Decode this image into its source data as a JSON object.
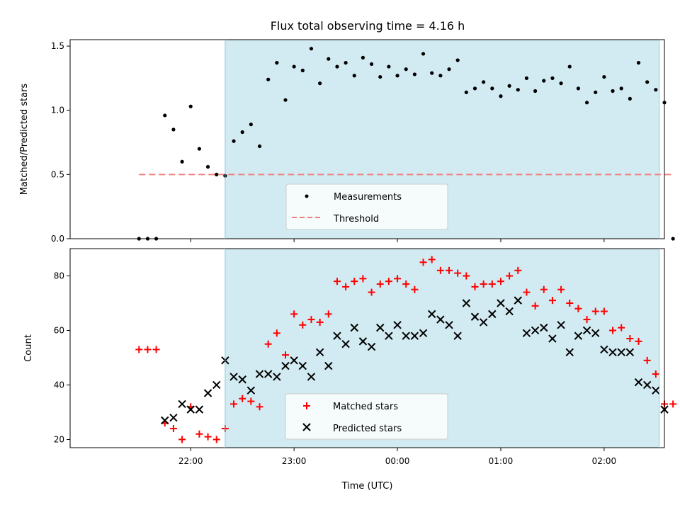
{
  "chart_data": [
    {
      "type": "scatter",
      "title": "Flux total observing time = 4.16 h",
      "xlabel": "",
      "ylabel": "Matched/Predicted stars",
      "ylim": [
        0,
        1.55
      ],
      "yticks": [
        "0.0",
        "0.5",
        "1.0",
        "1.5"
      ],
      "grid": false,
      "legend_placement": "bottom-center",
      "shaded_span": {
        "from": "22:20",
        "to": "02:32",
        "color": "#add8e6"
      },
      "series": [
        {
          "name": "Measurements",
          "marker": "dot",
          "color": "#000000",
          "x": [
            "21:30",
            "21:35",
            "21:40",
            "21:45",
            "21:50",
            "21:55",
            "22:00",
            "22:05",
            "22:10",
            "22:15",
            "22:20",
            "22:25",
            "22:30",
            "22:35",
            "22:40",
            "22:45",
            "22:50",
            "22:55",
            "23:00",
            "23:05",
            "23:10",
            "23:15",
            "23:20",
            "23:25",
            "23:30",
            "23:35",
            "23:40",
            "23:45",
            "23:50",
            "23:55",
            "00:00",
            "00:05",
            "00:10",
            "00:15",
            "00:20",
            "00:25",
            "00:30",
            "00:35",
            "00:40",
            "00:45",
            "00:50",
            "00:55",
            "01:00",
            "01:05",
            "01:10",
            "01:15",
            "01:20",
            "01:25",
            "01:30",
            "01:35",
            "01:40",
            "01:45",
            "01:50",
            "01:55",
            "02:00",
            "02:05",
            "02:10",
            "02:15",
            "02:20",
            "02:25",
            "02:30",
            "02:35",
            "02:40"
          ],
          "y": [
            0.0,
            0.0,
            0.0,
            0.96,
            0.85,
            0.6,
            1.03,
            0.7,
            0.56,
            0.5,
            0.49,
            0.76,
            0.83,
            0.89,
            0.72,
            1.24,
            1.37,
            1.08,
            1.34,
            1.31,
            1.48,
            1.21,
            1.4,
            1.34,
            1.37,
            1.27,
            1.41,
            1.36,
            1.26,
            1.34,
            1.27,
            1.32,
            1.28,
            1.44,
            1.29,
            1.27,
            1.32,
            1.39,
            1.14,
            1.17,
            1.22,
            1.17,
            1.11,
            1.19,
            1.16,
            1.25,
            1.15,
            1.23,
            1.25,
            1.21,
            1.34,
            1.17,
            1.06,
            1.14,
            1.26,
            1.15,
            1.17,
            1.09,
            1.37,
            1.22,
            1.16,
            1.06,
            0.0
          ]
        },
        {
          "name": "Threshold",
          "line": "dashed",
          "color": "#f08080",
          "x": [
            "21:30",
            "02:40"
          ],
          "y": [
            0.5,
            0.5
          ]
        }
      ]
    },
    {
      "type": "scatter",
      "title": "",
      "xlabel": "Time (UTC)",
      "ylabel": "Count",
      "ylim": [
        17,
        90
      ],
      "yticks": [
        "20",
        "40",
        "60",
        "80"
      ],
      "xticks": [
        "22:00",
        "23:00",
        "00:00",
        "01:00",
        "02:00"
      ],
      "grid": false,
      "legend_placement": "bottom-center",
      "shaded_span": {
        "from": "22:20",
        "to": "02:32",
        "color": "#add8e6"
      },
      "series": [
        {
          "name": "Matched stars",
          "marker": "plus",
          "color": "#ff0000",
          "x": [
            "21:30",
            "21:35",
            "21:40",
            "21:45",
            "21:50",
            "21:55",
            "22:00",
            "22:05",
            "22:10",
            "22:15",
            "22:20",
            "22:25",
            "22:30",
            "22:35",
            "22:40",
            "22:45",
            "22:50",
            "22:55",
            "23:00",
            "23:05",
            "23:10",
            "23:15",
            "23:20",
            "23:25",
            "23:30",
            "23:35",
            "23:40",
            "23:45",
            "23:50",
            "23:55",
            "00:00",
            "00:05",
            "00:10",
            "00:15",
            "00:20",
            "00:25",
            "00:30",
            "00:35",
            "00:40",
            "00:45",
            "00:50",
            "00:55",
            "01:00",
            "01:05",
            "01:10",
            "01:15",
            "01:20",
            "01:25",
            "01:30",
            "01:35",
            "01:40",
            "01:45",
            "01:50",
            "01:55",
            "02:00",
            "02:05",
            "02:10",
            "02:15",
            "02:20",
            "02:25",
            "02:30",
            "02:35",
            "02:40"
          ],
          "y": [
            53,
            53,
            53,
            26,
            24,
            20,
            32,
            22,
            21,
            20,
            24,
            33,
            35,
            34,
            32,
            55,
            59,
            51,
            66,
            62,
            64,
            63,
            66,
            78,
            76,
            78,
            79,
            74,
            77,
            78,
            79,
            77,
            75,
            85,
            86,
            82,
            82,
            81,
            80,
            76,
            77,
            77,
            78,
            80,
            82,
            74,
            69,
            75,
            71,
            75,
            70,
            68,
            64,
            67,
            67,
            60,
            61,
            57,
            56,
            49,
            44,
            33,
            33
          ]
        },
        {
          "name": "Predicted stars",
          "marker": "x",
          "color": "#000000",
          "x": [
            "21:45",
            "21:50",
            "21:55",
            "22:00",
            "22:05",
            "22:10",
            "22:15",
            "22:20",
            "22:25",
            "22:30",
            "22:35",
            "22:40",
            "22:45",
            "22:50",
            "22:55",
            "23:00",
            "23:05",
            "23:10",
            "23:15",
            "23:20",
            "23:25",
            "23:30",
            "23:35",
            "23:40",
            "23:45",
            "23:50",
            "23:55",
            "00:00",
            "00:05",
            "00:10",
            "00:15",
            "00:20",
            "00:25",
            "00:30",
            "00:35",
            "00:40",
            "00:45",
            "00:50",
            "00:55",
            "01:00",
            "01:05",
            "01:10",
            "01:15",
            "01:20",
            "01:25",
            "01:30",
            "01:35",
            "01:40",
            "01:45",
            "01:50",
            "01:55",
            "02:00",
            "02:05",
            "02:10",
            "02:15",
            "02:20",
            "02:25",
            "02:30",
            "02:35"
          ],
          "y": [
            27,
            28,
            33,
            31,
            31,
            37,
            40,
            49,
            43,
            42,
            38,
            44,
            44,
            43,
            47,
            49,
            47,
            43,
            52,
            47,
            58,
            55,
            61,
            56,
            54,
            61,
            58,
            62,
            58,
            58,
            59,
            66,
            64,
            62,
            58,
            70,
            65,
            63,
            66,
            70,
            67,
            71,
            59,
            60,
            61,
            57,
            62,
            52,
            58,
            60,
            59,
            53,
            52,
            52,
            52,
            41,
            40,
            38,
            31
          ]
        }
      ]
    }
  ]
}
